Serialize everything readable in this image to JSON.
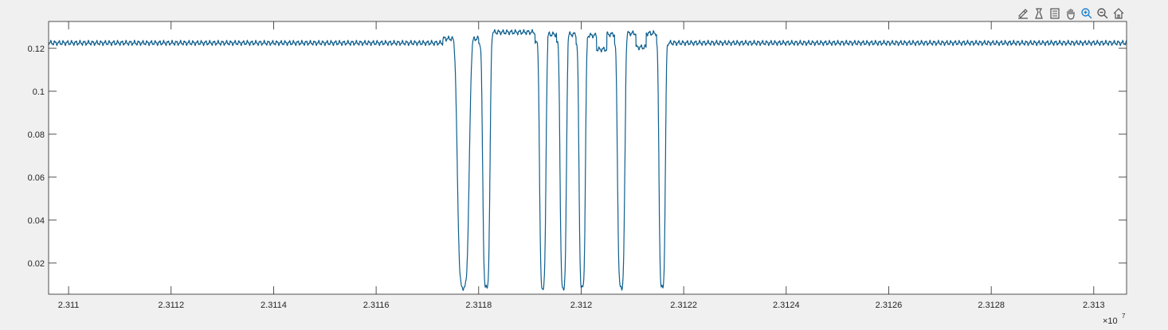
{
  "toolbar": {
    "buttons": [
      {
        "name": "edit-plot-icon"
      },
      {
        "name": "insert-colorbar-icon"
      },
      {
        "name": "insert-legend-icon"
      },
      {
        "name": "pan-icon"
      },
      {
        "name": "zoom-in-icon"
      },
      {
        "name": "zoom-out-icon"
      },
      {
        "name": "home-icon"
      }
    ]
  },
  "chart_data": {
    "type": "line",
    "title": "",
    "xlabel": "",
    "ylabel": "",
    "x_exponent_label": "×10",
    "x_exponent_power": "7",
    "xlim": [
      23109610,
      23130640
    ],
    "ylim": [
      0.0055,
      0.1325
    ],
    "grid": false,
    "colors": {
      "line": "#0e5f8f",
      "axes": "#262626",
      "background": "#ffffff",
      "figure": "#f0f0f0",
      "active_tool": "#1b7fcf"
    },
    "xticks": [
      23110000,
      23112000,
      23114000,
      23116000,
      23118000,
      23120000,
      23122000,
      23124000,
      23126000,
      23128000,
      23130000
    ],
    "xtick_labels": [
      "2.311",
      "2.3112",
      "2.3114",
      "2.3116",
      "2.3118",
      "2.312",
      "2.3122",
      "2.3124",
      "2.3126",
      "2.3128",
      "2.313"
    ],
    "yticks": [
      0.02,
      0.04,
      0.06,
      0.08,
      0.1,
      0.12
    ],
    "ytick_labels": [
      "0.02",
      "0.04",
      "0.06",
      "0.08",
      "0.1",
      "0.12"
    ],
    "series": [
      {
        "baseline": 0.1225,
        "ripple": 0.0008,
        "dips": [
          {
            "center": 23117700,
            "width": 130,
            "min": 0.0085
          },
          {
            "center": 23118150,
            "width": 80,
            "min": 0.0085
          },
          {
            "center": 23119250,
            "width": 70,
            "min": 0.0085
          },
          {
            "center": 23119650,
            "width": 70,
            "min": 0.0085
          },
          {
            "center": 23120020,
            "width": 70,
            "min": 0.0085
          },
          {
            "center": 23120780,
            "width": 80,
            "min": 0.0085
          },
          {
            "center": 23121580,
            "width": 70,
            "min": 0.0085
          }
        ],
        "plateaus": [
          {
            "from": 23117300,
            "to": 23118000,
            "value": 0.1245
          },
          {
            "from": 23118200,
            "to": 23119100,
            "value": 0.1275
          },
          {
            "from": 23119350,
            "to": 23119520,
            "value": 0.1265
          },
          {
            "from": 23119740,
            "to": 23119900,
            "value": 0.1265
          },
          {
            "from": 23120120,
            "to": 23120300,
            "value": 0.126
          },
          {
            "from": 23120300,
            "to": 23120500,
            "value": 0.1195
          },
          {
            "from": 23120500,
            "to": 23120650,
            "value": 0.1265
          },
          {
            "from": 23120870,
            "to": 23121070,
            "value": 0.127
          },
          {
            "from": 23121070,
            "to": 23121270,
            "value": 0.1205
          },
          {
            "from": 23121270,
            "to": 23121470,
            "value": 0.127
          }
        ]
      }
    ]
  }
}
